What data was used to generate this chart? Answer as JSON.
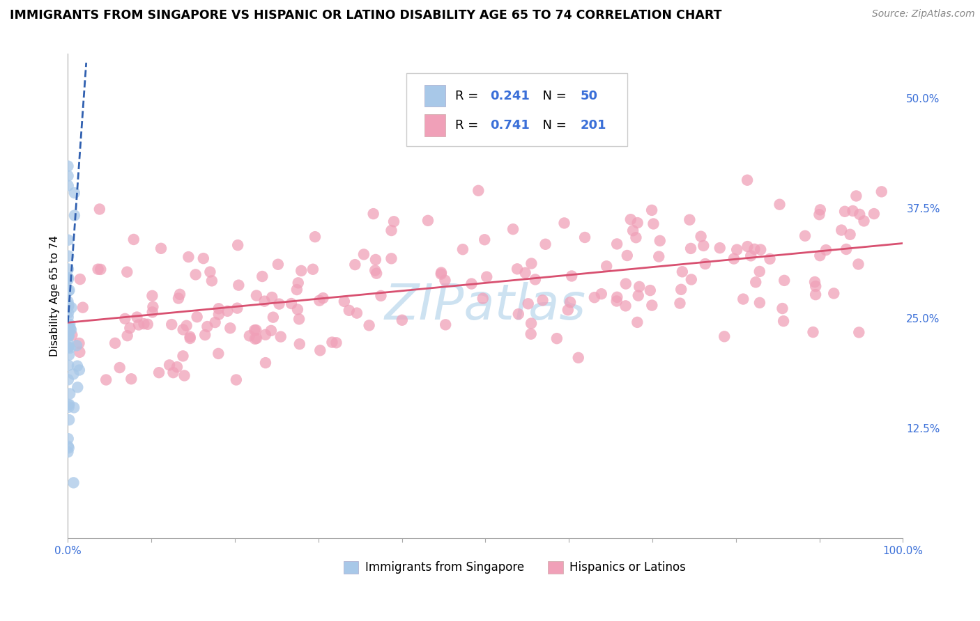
{
  "title": "IMMIGRANTS FROM SINGAPORE VS HISPANIC OR LATINO DISABILITY AGE 65 TO 74 CORRELATION CHART",
  "source_text": "Source: ZipAtlas.com",
  "ylabel": "Disability Age 65 to 74",
  "x_min": 0.0,
  "x_max": 1.0,
  "y_min": 0.0,
  "y_max": 0.55,
  "r_blue": 0.241,
  "n_blue": 50,
  "r_pink": 0.741,
  "n_pink": 201,
  "blue_color": "#a8c8e8",
  "pink_color": "#f0a0b8",
  "blue_line_color": "#3060b0",
  "pink_line_color": "#d85070",
  "tick_color": "#3a6fd8",
  "title_fontsize": 12.5,
  "axis_label_fontsize": 11,
  "tick_fontsize": 11,
  "legend_fontsize": 13,
  "watermark_color": "#c8dff0",
  "grid_color": "#dddddd",
  "pink_trend_x0": 0.0,
  "pink_trend_x1": 1.0,
  "pink_trend_y0": 0.245,
  "pink_trend_y1": 0.335,
  "blue_trend_x0": 0.0,
  "blue_trend_x1": 0.022,
  "blue_trend_y0": 0.245,
  "blue_trend_y1": 0.54
}
